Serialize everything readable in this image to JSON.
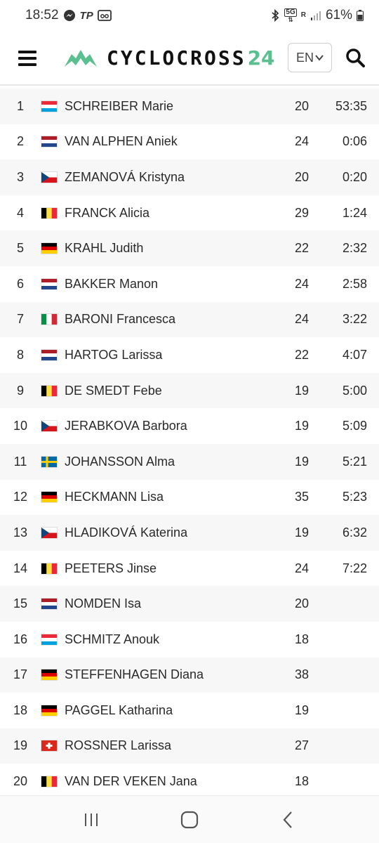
{
  "status_bar": {
    "time": "18:52",
    "left_icons": [
      "messenger-icon",
      "tp-icon",
      "voicemail-icon"
    ],
    "tp_text": "TP",
    "right_icons": [
      "bluetooth-icon",
      "5g-icon",
      "roaming-icon",
      "signal-icon"
    ],
    "network_label": "5G",
    "roaming_label": "R",
    "battery": "61%"
  },
  "header": {
    "logo_text": "CYCLOCROSS",
    "logo_number": "24",
    "language": "EN",
    "accent_color": "#5bbf90"
  },
  "results": [
    {
      "pos": "1",
      "flag": "lux",
      "name": "SCHREIBER Marie",
      "age": "20",
      "time": "53:35"
    },
    {
      "pos": "2",
      "flag": "ned",
      "name": "VAN ALPHEN Aniek",
      "age": "24",
      "time": "0:06"
    },
    {
      "pos": "3",
      "flag": "cze",
      "name": "ZEMANOVÁ Kristyna",
      "age": "20",
      "time": "0:20"
    },
    {
      "pos": "4",
      "flag": "bel",
      "name": "FRANCK Alicia",
      "age": "29",
      "time": "1:24"
    },
    {
      "pos": "5",
      "flag": "ger",
      "name": "KRAHL Judith",
      "age": "22",
      "time": "2:32"
    },
    {
      "pos": "6",
      "flag": "ned",
      "name": "BAKKER Manon",
      "age": "24",
      "time": "2:58"
    },
    {
      "pos": "7",
      "flag": "ita",
      "name": "BARONI Francesca",
      "age": "24",
      "time": "3:22"
    },
    {
      "pos": "8",
      "flag": "ned",
      "name": "HARTOG Larissa",
      "age": "22",
      "time": "4:07"
    },
    {
      "pos": "9",
      "flag": "bel",
      "name": "DE SMEDT Febe",
      "age": "19",
      "time": "5:00"
    },
    {
      "pos": "10",
      "flag": "cze",
      "name": "JERABKOVA Barbora",
      "age": "19",
      "time": "5:09"
    },
    {
      "pos": "11",
      "flag": "swe",
      "name": "JOHANSSON Alma",
      "age": "19",
      "time": "5:21"
    },
    {
      "pos": "12",
      "flag": "ger",
      "name": "HECKMANN Lisa",
      "age": "35",
      "time": "5:23"
    },
    {
      "pos": "13",
      "flag": "cze",
      "name": "HLADIKOVÁ Katerina",
      "age": "19",
      "time": "6:32"
    },
    {
      "pos": "14",
      "flag": "bel",
      "name": "PEETERS Jinse",
      "age": "24",
      "time": "7:22"
    },
    {
      "pos": "15",
      "flag": "ned",
      "name": "NOMDEN Isa",
      "age": "20",
      "time": ""
    },
    {
      "pos": "16",
      "flag": "lux",
      "name": "SCHMITZ Anouk",
      "age": "18",
      "time": ""
    },
    {
      "pos": "17",
      "flag": "ger",
      "name": "STEFFENHAGEN Diana",
      "age": "38",
      "time": ""
    },
    {
      "pos": "18",
      "flag": "ger",
      "name": "PAGGEL Katharina",
      "age": "19",
      "time": ""
    },
    {
      "pos": "19",
      "flag": "sui",
      "name": "ROSSNER Larissa",
      "age": "27",
      "time": ""
    },
    {
      "pos": "20",
      "flag": "bel",
      "name": "VAN DER VEKEN Jana",
      "age": "18",
      "time": ""
    }
  ],
  "nav_bar": {
    "icons": [
      "recent-apps-icon",
      "home-icon",
      "back-icon"
    ]
  }
}
